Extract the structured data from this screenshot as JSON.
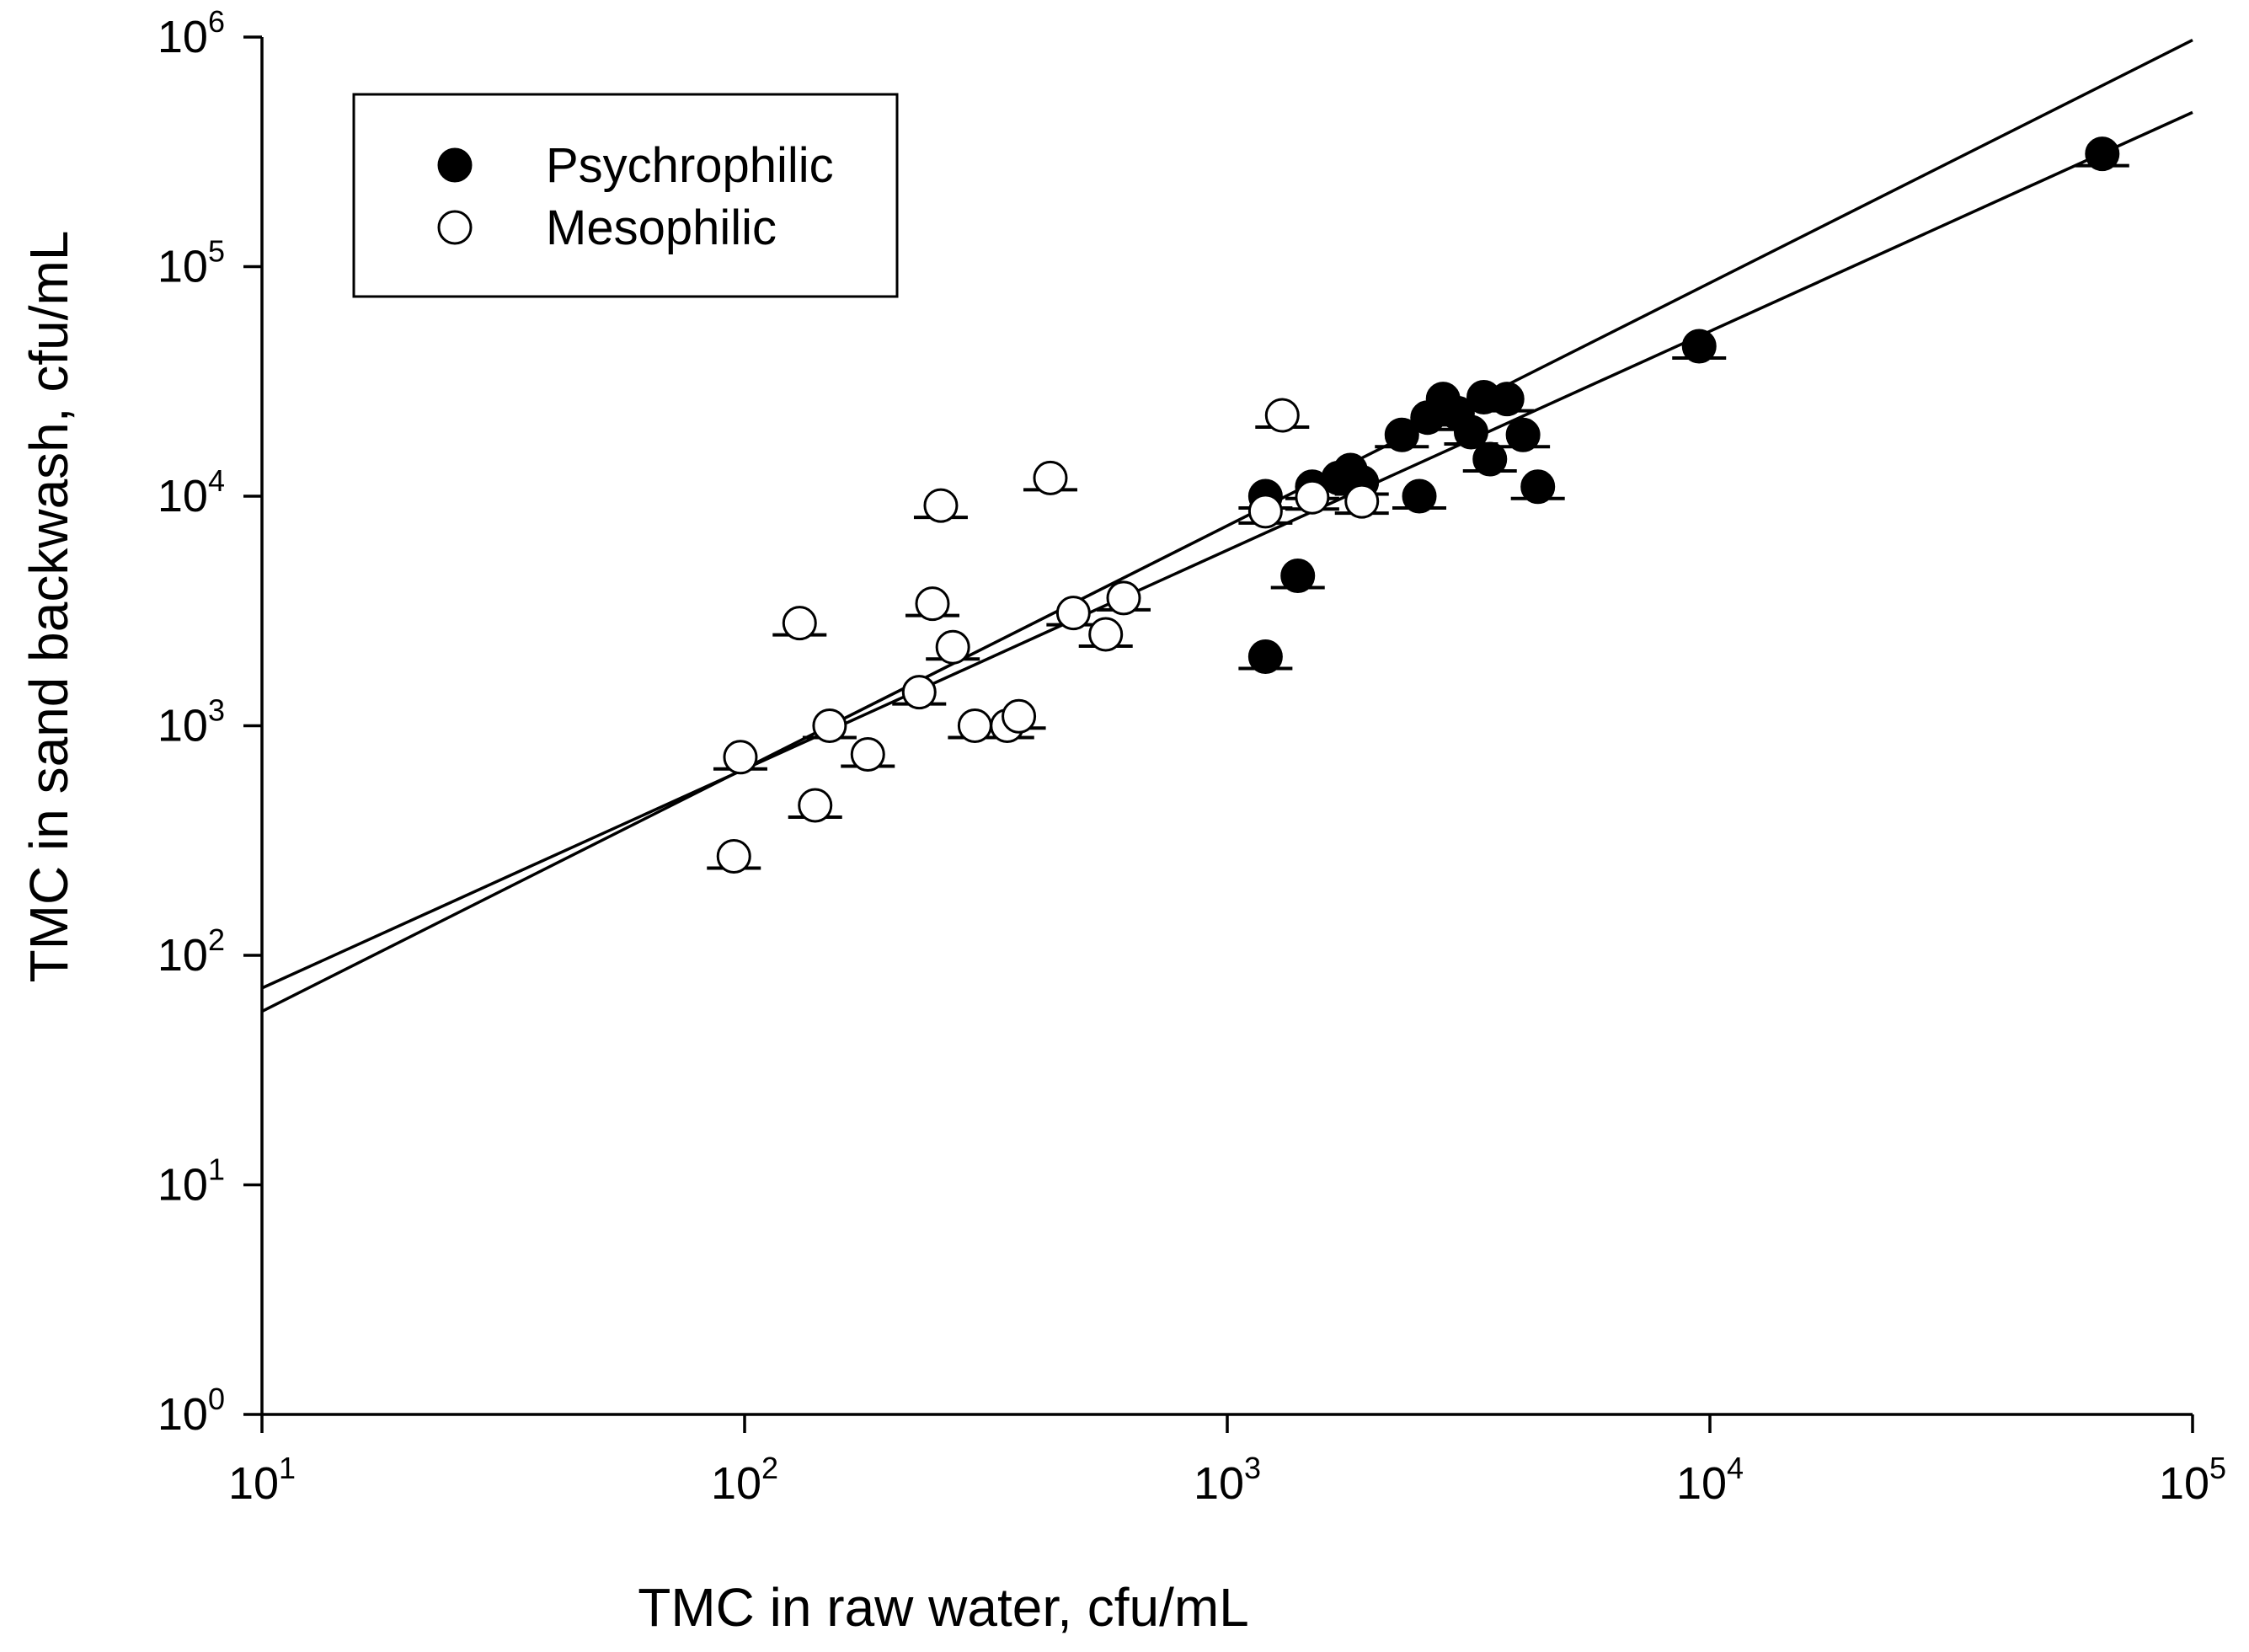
{
  "chart_data": {
    "type": "scatter",
    "title": "",
    "xlabel": "TMC in raw water, cfu/mL",
    "ylabel": "TMC in sand backwash, cfu/mL",
    "xscale": "log",
    "yscale": "log",
    "xlim": [
      10,
      100000
    ],
    "ylim": [
      1,
      1000000
    ],
    "x_ticks": [
      {
        "base": "10",
        "exp": "1",
        "value": 10
      },
      {
        "base": "10",
        "exp": "2",
        "value": 100
      },
      {
        "base": "10",
        "exp": "3",
        "value": 1000
      },
      {
        "base": "10",
        "exp": "4",
        "value": 10000
      },
      {
        "base": "10",
        "exp": "5",
        "value": 100000
      }
    ],
    "y_ticks": [
      {
        "base": "10",
        "exp": "0",
        "value": 1
      },
      {
        "base": "10",
        "exp": "1",
        "value": 10
      },
      {
        "base": "10",
        "exp": "2",
        "value": 100
      },
      {
        "base": "10",
        "exp": "3",
        "value": 1000
      },
      {
        "base": "10",
        "exp": "4",
        "value": 10000
      },
      {
        "base": "10",
        "exp": "5",
        "value": 100000
      },
      {
        "base": "10",
        "exp": "6",
        "value": 1000000
      }
    ],
    "legend_position": "top-left",
    "series": [
      {
        "name": "Psychrophilic",
        "marker": "filled-circle",
        "color": "#000000",
        "points": [
          {
            "x": 1200,
            "y": 10000
          },
          {
            "x": 1500,
            "y": 11000
          },
          {
            "x": 1700,
            "y": 12000
          },
          {
            "x": 1800,
            "y": 13000
          },
          {
            "x": 1900,
            "y": 11500
          },
          {
            "x": 1200,
            "y": 2000
          },
          {
            "x": 1400,
            "y": 4500
          },
          {
            "x": 2300,
            "y": 18500
          },
          {
            "x": 2500,
            "y": 10000
          },
          {
            "x": 2600,
            "y": 22000
          },
          {
            "x": 2800,
            "y": 26500
          },
          {
            "x": 3000,
            "y": 23000
          },
          {
            "x": 3200,
            "y": 19000
          },
          {
            "x": 3400,
            "y": 27000
          },
          {
            "x": 3500,
            "y": 14500
          },
          {
            "x": 3800,
            "y": 26500
          },
          {
            "x": 4100,
            "y": 18500
          },
          {
            "x": 4400,
            "y": 11000
          },
          {
            "x": 9500,
            "y": 45000
          },
          {
            "x": 65000,
            "y": 310000
          }
        ]
      },
      {
        "name": "Mesophilic",
        "marker": "open-circle",
        "color": "#000000",
        "points": [
          {
            "x": 95,
            "y": 270
          },
          {
            "x": 98,
            "y": 730
          },
          {
            "x": 130,
            "y": 2800
          },
          {
            "x": 140,
            "y": 450
          },
          {
            "x": 150,
            "y": 1000
          },
          {
            "x": 180,
            "y": 750
          },
          {
            "x": 230,
            "y": 1400
          },
          {
            "x": 245,
            "y": 3400
          },
          {
            "x": 255,
            "y": 9100
          },
          {
            "x": 270,
            "y": 2200
          },
          {
            "x": 300,
            "y": 1000
          },
          {
            "x": 350,
            "y": 1000
          },
          {
            "x": 370,
            "y": 1100
          },
          {
            "x": 430,
            "y": 12000
          },
          {
            "x": 480,
            "y": 3100
          },
          {
            "x": 560,
            "y": 2500
          },
          {
            "x": 610,
            "y": 3600
          },
          {
            "x": 1200,
            "y": 8600
          },
          {
            "x": 1300,
            "y": 22500
          },
          {
            "x": 1500,
            "y": 9900
          },
          {
            "x": 1900,
            "y": 9500
          }
        ]
      }
    ],
    "fit_lines": [
      {
        "name": "fit-steep",
        "points": [
          {
            "x": 10,
            "y": 57
          },
          {
            "x": 100000,
            "y": 970000
          }
        ]
      },
      {
        "name": "fit-shallow",
        "points": [
          {
            "x": 10,
            "y": 72
          },
          {
            "x": 100000,
            "y": 470000
          }
        ]
      }
    ]
  },
  "legend": {
    "items": [
      {
        "label": "Psychrophilic",
        "marker": "filled-circle"
      },
      {
        "label": "Mesophilic",
        "marker": "open-circle"
      }
    ]
  }
}
